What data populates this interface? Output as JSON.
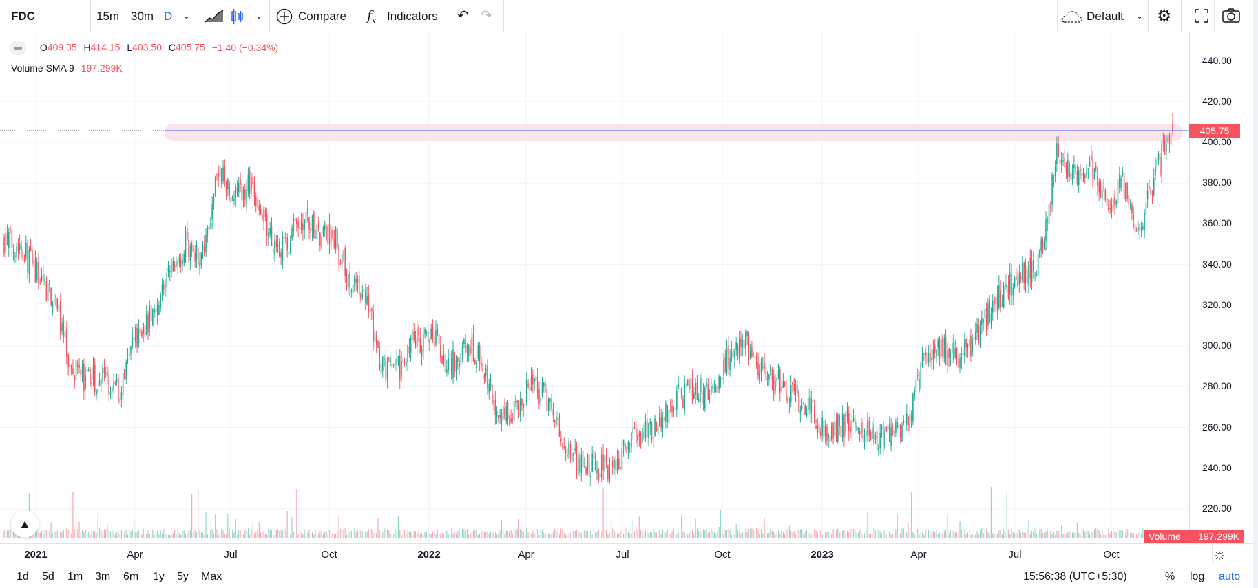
{
  "toolbar": {
    "symbol": "FDC",
    "intervals": [
      "15m",
      "30m",
      "D"
    ],
    "compare": "Compare",
    "indicators": "Indicators",
    "layout": "Default"
  },
  "legend": {
    "o_label": "O",
    "open": "409.35",
    "h_label": "H",
    "high": "414.15",
    "l_label": "L",
    "low": "403.50",
    "c_label": "C",
    "close": "405.75",
    "change": "−1.40 (−0.34%)",
    "volume_name": "Volume SMA 9",
    "volume_value": "197.299K"
  },
  "price_axis": {
    "ticks": [
      "440.00",
      "420.00",
      "400.00",
      "380.00",
      "360.00",
      "340.00",
      "320.00",
      "300.00",
      "280.00",
      "260.00",
      "240.00",
      "220.00"
    ],
    "last_price": "405.75"
  },
  "volume_label": {
    "name": "Volume",
    "value": "197.299K"
  },
  "time_axis": {
    "labels": [
      {
        "text": "2021",
        "bold": true
      },
      {
        "text": "Apr"
      },
      {
        "text": "Jul"
      },
      {
        "text": "Oct"
      },
      {
        "text": "2022",
        "bold": true
      },
      {
        "text": "Apr"
      },
      {
        "text": "Jul"
      },
      {
        "text": "Oct"
      },
      {
        "text": "2023",
        "bold": true
      },
      {
        "text": "Apr"
      },
      {
        "text": "Jul"
      },
      {
        "text": "Oct"
      }
    ]
  },
  "bottom_bar": {
    "ranges": [
      "1d",
      "5d",
      "1m",
      "3m",
      "6m",
      "1y",
      "5y",
      "Max"
    ],
    "clock": "15:56:38 (UTC+5:30)",
    "percent": "%",
    "log": "log",
    "auto": "auto"
  },
  "colors": {
    "up": "#22ab94",
    "down": "#f7525f",
    "line": "#2962ff",
    "band": "#fce4ec",
    "accent": "#2962ff"
  },
  "chart_data": {
    "type": "candlestick",
    "symbol": "FDC",
    "interval": "D",
    "ylim": [
      215,
      445
    ],
    "start": "2020-12",
    "semi_monthly_closes": [
      352,
      350,
      335,
      325,
      290,
      282,
      285,
      278,
      305,
      315,
      335,
      350,
      345,
      385,
      375,
      380,
      355,
      348,
      362,
      355,
      355,
      330,
      322,
      288,
      290,
      302,
      305,
      290,
      300,
      295,
      265,
      268,
      280,
      275,
      250,
      243,
      240,
      240,
      255,
      258,
      265,
      275,
      278,
      278,
      295,
      305,
      285,
      283,
      275,
      268,
      258,
      262,
      262,
      253,
      255,
      265,
      295,
      298,
      292,
      305,
      318,
      330,
      335,
      345,
      395,
      385,
      388,
      372,
      380,
      355,
      385,
      405.75
    ],
    "horizontal_level": 405.75
  }
}
